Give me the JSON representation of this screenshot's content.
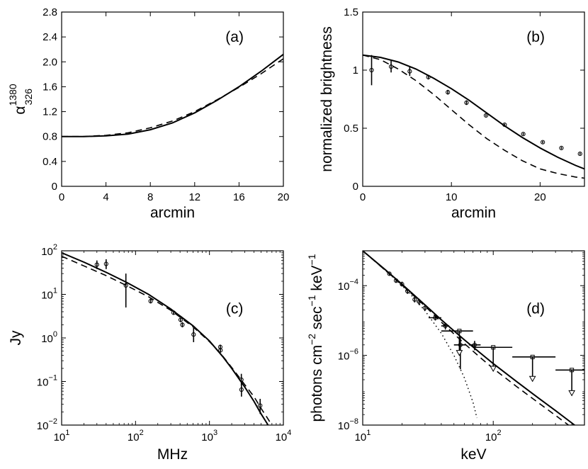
{
  "chart_data": [
    {
      "id": "a",
      "type": "line",
      "panel_label": "(a)",
      "xlabel": "arcmin",
      "ylabel": "α",
      "ylabel_sup": "1380",
      "ylabel_sub": "326",
      "xscale": "linear",
      "yscale": "linear",
      "xlim": [
        0,
        20
      ],
      "ylim": [
        0,
        2.8
      ],
      "xticks": [
        0,
        4,
        8,
        12,
        16,
        20
      ],
      "xtick_labels": [
        "0",
        "4",
        "8",
        "12",
        "16",
        "20"
      ],
      "yticks": [
        0,
        0.4,
        0.8,
        1.2,
        1.6,
        2.0,
        2.4,
        2.8
      ],
      "ytick_labels": [
        "0",
        "0.4",
        "0.8",
        "1.2",
        "1.6",
        "2.0",
        "2.4",
        "2.8"
      ],
      "series": [
        {
          "style": "solid",
          "x": [
            0,
            2,
            4,
            6,
            8,
            10,
            12,
            14,
            16,
            18,
            20
          ],
          "y": [
            0.8,
            0.8,
            0.81,
            0.84,
            0.91,
            1.02,
            1.18,
            1.38,
            1.6,
            1.85,
            2.12
          ]
        },
        {
          "style": "dashed",
          "x": [
            0,
            2,
            4,
            6,
            8,
            10,
            12,
            14,
            16,
            18,
            20
          ],
          "y": [
            0.8,
            0.8,
            0.82,
            0.86,
            0.94,
            1.05,
            1.2,
            1.39,
            1.59,
            1.81,
            2.05
          ]
        }
      ]
    },
    {
      "id": "b",
      "type": "line",
      "panel_label": "(b)",
      "xlabel": "arcmin",
      "ylabel": "normalized brightness",
      "xscale": "linear",
      "yscale": "linear",
      "xlim": [
        0,
        25
      ],
      "ylim": [
        0,
        1.5
      ],
      "xticks": [
        0,
        10,
        20
      ],
      "xtick_labels": [
        "0",
        "10",
        "20"
      ],
      "yticks": [
        0,
        0.5,
        1,
        1.5
      ],
      "ytick_labels": [
        "0",
        "0.5",
        "1",
        "1.5"
      ],
      "series": [
        {
          "style": "solid",
          "x": [
            0,
            2,
            4,
            6,
            8,
            10,
            12,
            14,
            16,
            18,
            20,
            22,
            24,
            25
          ],
          "y": [
            1.13,
            1.11,
            1.07,
            1.01,
            0.93,
            0.84,
            0.74,
            0.63,
            0.52,
            0.42,
            0.33,
            0.25,
            0.18,
            0.15
          ]
        },
        {
          "style": "dashed",
          "x": [
            0,
            2,
            4,
            6,
            8,
            10,
            12,
            14,
            16,
            18,
            20,
            22,
            24,
            25
          ],
          "y": [
            1.13,
            1.09,
            1.01,
            0.91,
            0.79,
            0.66,
            0.53,
            0.41,
            0.31,
            0.22,
            0.15,
            0.11,
            0.08,
            0.07
          ]
        }
      ],
      "points": {
        "x": [
          1,
          3.2,
          5.3,
          7.4,
          9.6,
          11.7,
          13.9,
          16,
          18.1,
          20.3,
          22.4,
          24.5
        ],
        "y": [
          1.0,
          1.03,
          0.99,
          0.94,
          0.81,
          0.72,
          0.61,
          0.53,
          0.45,
          0.38,
          0.33,
          0.28
        ],
        "err": [
          0.13,
          0.05,
          0.04,
          0.02,
          0.02,
          0.02,
          0.01,
          0.01,
          0.01,
          0.01,
          0.01,
          0.01
        ]
      }
    },
    {
      "id": "c",
      "type": "line",
      "panel_label": "(c)",
      "xlabel": "MHz",
      "ylabel": "Jy",
      "xscale": "log",
      "yscale": "log",
      "xlim": [
        10,
        10000
      ],
      "ylim": [
        0.01,
        100
      ],
      "xticks": [
        10,
        100,
        1000,
        10000
      ],
      "xtick_labels": [
        [
          "10",
          "1"
        ],
        [
          "10",
          "2"
        ],
        [
          "10",
          "3"
        ],
        [
          "10",
          "4"
        ]
      ],
      "yticks": [
        0.01,
        0.1,
        1,
        10,
        100
      ],
      "ytick_labels": [
        [
          "10",
          "−2"
        ],
        [
          "10",
          "−1"
        ],
        [
          "10",
          "0"
        ],
        [
          "10",
          "1"
        ],
        [
          "10",
          "2"
        ]
      ],
      "series": [
        {
          "style": "solid",
          "x": [
            10,
            20,
            40,
            75,
            150,
            300,
            600,
            1000,
            1500,
            2000,
            3000,
            4000,
            5000,
            6000,
            7000
          ],
          "y": [
            90,
            55,
            32,
            19,
            10,
            4.6,
            1.9,
            0.85,
            0.38,
            0.2,
            0.075,
            0.035,
            0.018,
            0.011,
            0.007
          ]
        },
        {
          "style": "dashed",
          "x": [
            10,
            20,
            40,
            75,
            150,
            300,
            600,
            1000,
            1500,
            2000,
            3000,
            4000,
            5000,
            6000,
            7000
          ],
          "y": [
            75,
            45,
            27,
            16,
            8.8,
            4.3,
            1.8,
            0.82,
            0.39,
            0.21,
            0.085,
            0.045,
            0.024,
            0.015,
            0.01
          ]
        }
      ],
      "points": {
        "x": [
          30,
          40,
          74,
          160,
          327,
          408,
          430,
          610,
          1400,
          1410,
          2700,
          2710,
          4850
        ],
        "y": [
          48,
          50,
          16,
          7,
          3.8,
          2.6,
          2.0,
          1.2,
          0.62,
          0.52,
          0.11,
          0.065,
          0.028
        ],
        "lo": [
          38,
          38,
          5,
          6.2,
          3.4,
          2.3,
          1.75,
          0.8,
          0.55,
          0.46,
          0.08,
          0.045,
          0.018
        ],
        "hi": [
          60,
          64,
          30,
          8,
          4.2,
          2.9,
          2.3,
          1.7,
          0.7,
          0.58,
          0.15,
          0.09,
          0.04
        ]
      }
    },
    {
      "id": "d",
      "type": "line",
      "panel_label": "(d)",
      "xlabel": "keV",
      "ylabel": "photons cm",
      "ylabel_sup1": "−2",
      "ylabel_mid": " sec",
      "ylabel_sup2": "−1",
      "ylabel_end": " keV",
      "ylabel_sup3": "−1",
      "xscale": "log",
      "yscale": "log",
      "xlim": [
        10,
        500
      ],
      "ylim": [
        1e-08,
        0.001
      ],
      "xticks": [
        10,
        100
      ],
      "xtick_labels": [
        [
          "10",
          "1"
        ],
        [
          "10",
          "2"
        ]
      ],
      "yticks": [
        1e-08,
        1e-06,
        0.0001
      ],
      "ytick_labels": [
        [
          "10",
          "−8"
        ],
        [
          "10",
          "−6"
        ],
        [
          "10",
          "−4"
        ]
      ],
      "series": [
        {
          "style": "solid",
          "x": [
            10,
            15,
            20,
            30,
            40,
            60,
            80,
            100,
            150,
            200,
            300,
            400,
            500
          ],
          "y": [
            0.001,
            0.00028,
            0.00011,
            2.8e-05,
            1.05e-05,
            2.8e-06,
            1.15e-06,
            5.8e-07,
            1.8e-07,
            8e-08,
            2.6e-08,
            1.15e-08,
            6e-09
          ]
        },
        {
          "style": "dashed",
          "x": [
            10,
            15,
            20,
            30,
            40,
            60,
            80,
            100,
            150,
            200,
            300,
            400,
            500
          ],
          "y": [
            0.001,
            0.00027,
            0.000105,
            2.6e-05,
            9e-06,
            2.2e-06,
            8.5e-07,
            4.2e-07,
            1.3e-07,
            5.8e-08,
            1.9e-08,
            8.5e-09,
            5e-09
          ]
        },
        {
          "style": "dotted",
          "x": [
            10,
            15,
            20,
            25,
            30,
            40,
            50,
            60,
            70,
            75
          ],
          "y": [
            0.001,
            0.00027,
            0.0001,
            4.2e-05,
            1.9e-05,
            4.3e-06,
            1e-06,
            2.3e-07,
            4.5e-08,
            1.6e-08
          ]
        }
      ],
      "points": {
        "x": [
          16,
          18,
          20,
          22,
          25,
          27,
          30
        ],
        "y": [
          0.00022,
          0.00014,
          0.00011,
          7e-05,
          4e-05,
          3.5e-05,
          2.3e-05
        ],
        "lo": [
          0.0002,
          0.00012,
          9.5e-05,
          5.8e-05,
          3.3e-05,
          2.8e-05,
          1.9e-05
        ],
        "hi": [
          0.00024,
          0.00016,
          0.00013,
          8.2e-05,
          4.8e-05,
          4.2e-05,
          2.7e-05
        ]
      },
      "points2": {
        "x": [
          36,
          43,
          56,
          72
        ],
        "y": [
          1.2e-05,
          7e-06,
          2e-06,
          2e-06
        ],
        "lo": [
          1e-05,
          5.5e-06,
          4e-07,
          1.4e-06
        ],
        "hi": [
          1.4e-05,
          8.5e-06,
          3.5e-06,
          2.6e-06
        ],
        "xlo": [
          32,
          40,
          50,
          65
        ],
        "xhi": [
          40,
          46,
          62,
          80
        ]
      },
      "upper_limits": {
        "x": [
          55,
          100,
          200,
          400
        ],
        "y": [
          5e-06,
          1.7e-06,
          9e-07,
          3.8e-07
        ],
        "xlo": [
          40,
          70,
          140,
          300
        ],
        "xhi": [
          70,
          140,
          300,
          500
        ],
        "arrow_to": [
          1e-06,
          3.5e-07,
          1.8e-07,
          7e-08
        ]
      }
    }
  ]
}
